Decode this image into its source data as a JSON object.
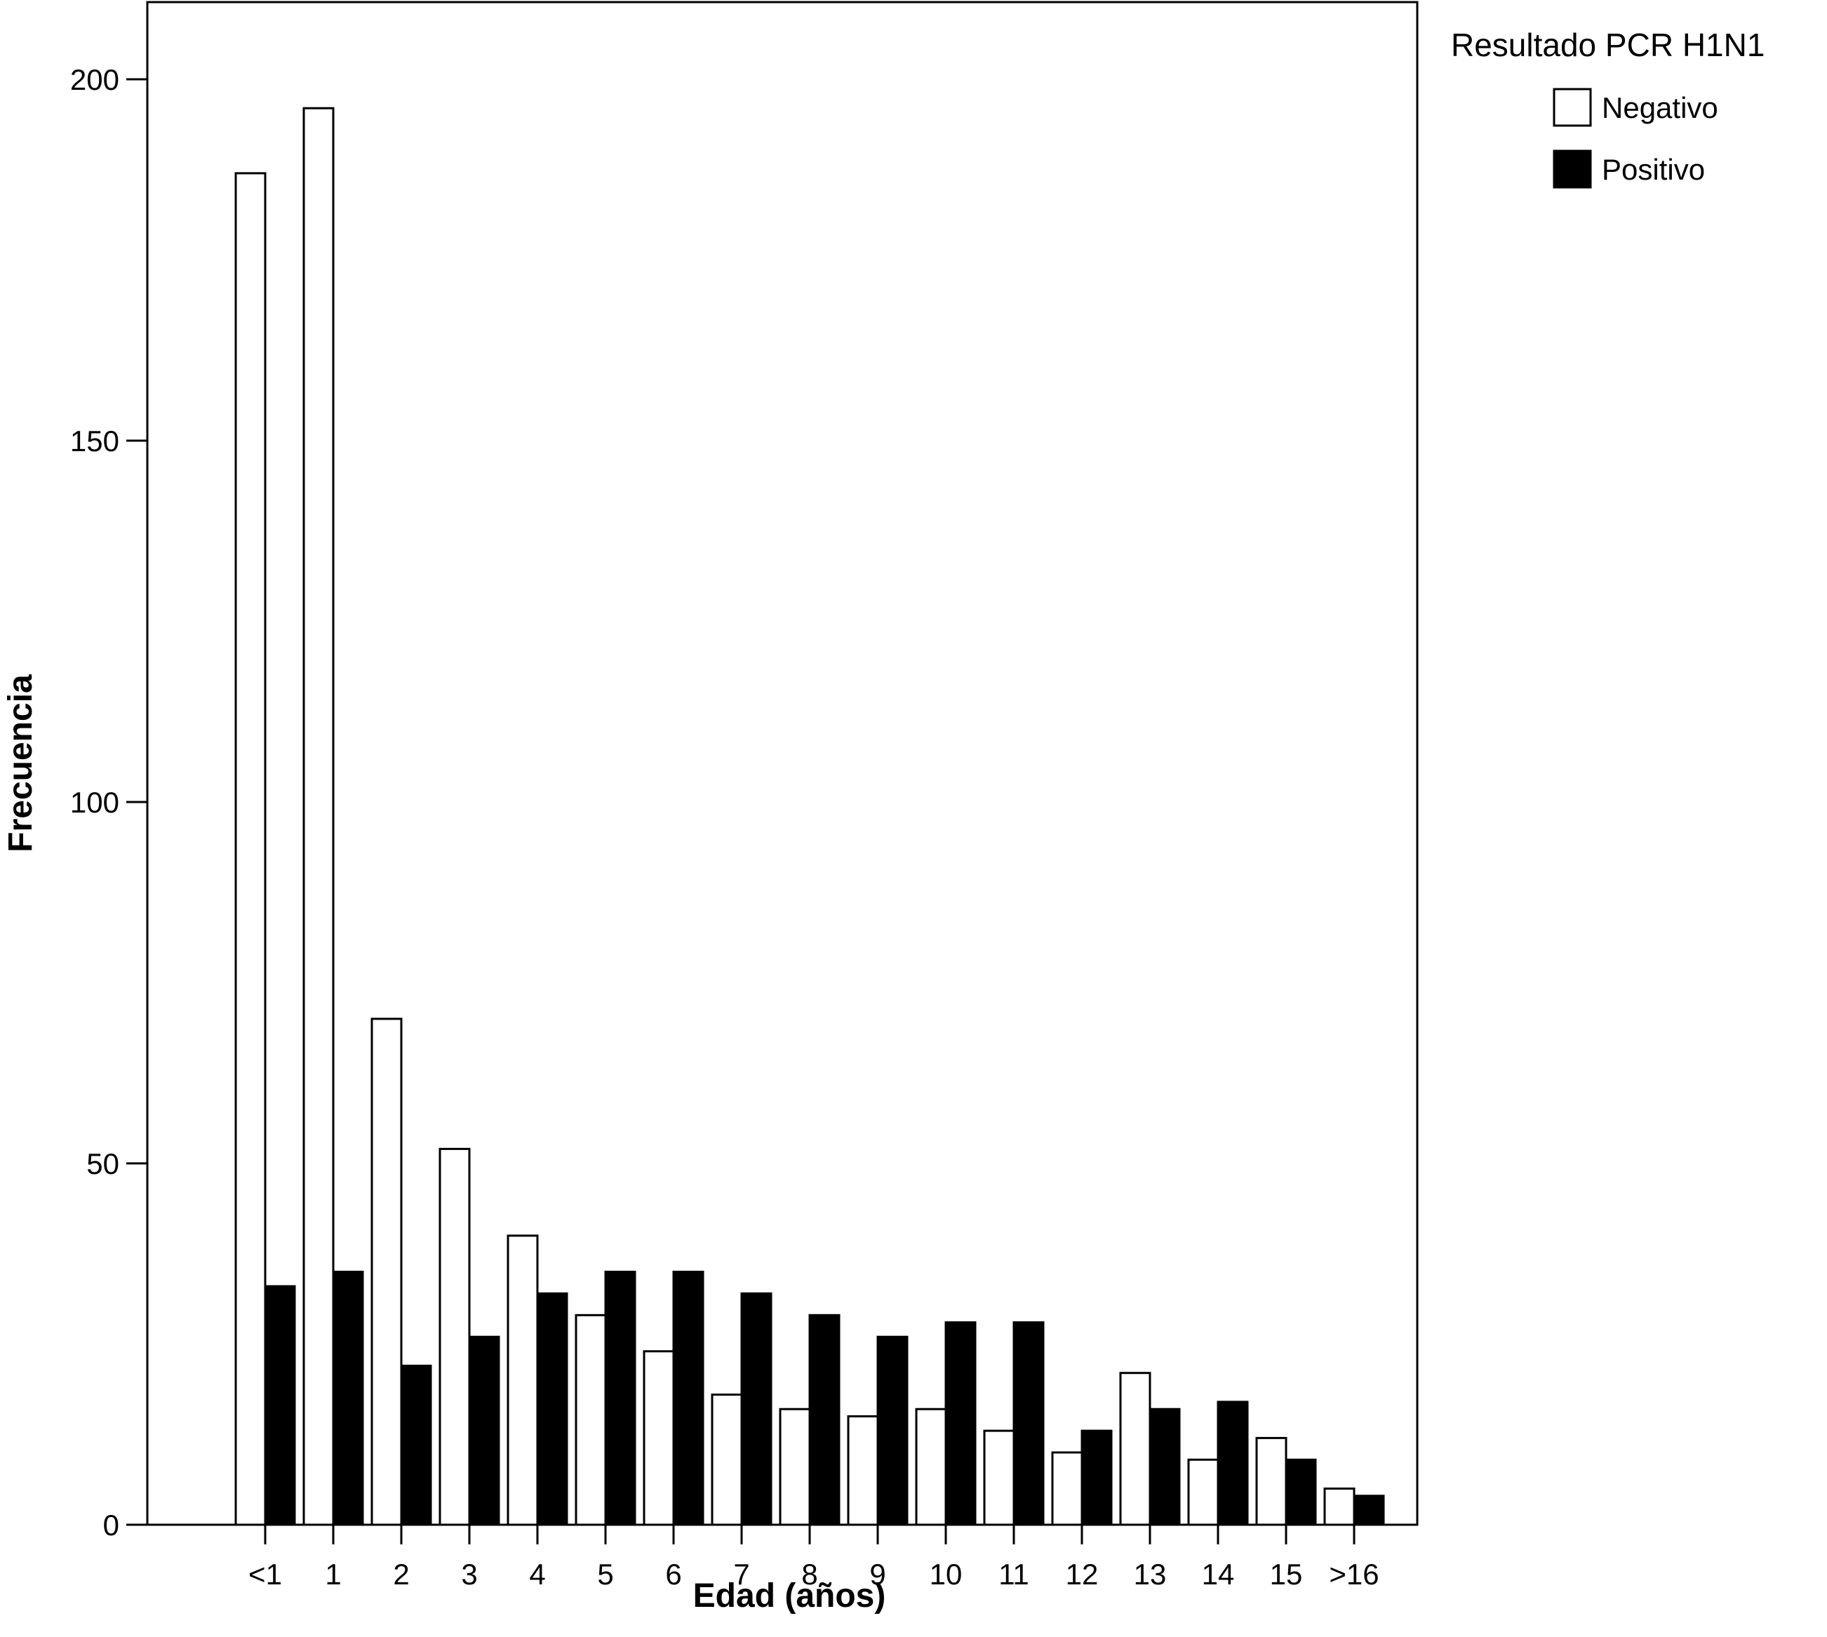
{
  "chart_data": {
    "type": "bar",
    "xlabel": "Edad (años)",
    "ylabel": "Frecuencia",
    "ylim": [
      0,
      210
    ],
    "yticks": [
      0,
      50,
      100,
      150,
      200
    ],
    "categories": [
      "<1",
      "1",
      "2",
      "3",
      "4",
      "5",
      "6",
      "7",
      "8",
      "9",
      "10",
      "11",
      "12",
      "13",
      "14",
      "15",
      ">16"
    ],
    "legend": {
      "title": "Resultado PCR H1N1",
      "placement": "right"
    },
    "series": [
      {
        "name": "Negativo",
        "color": "#ffffff",
        "values": [
          187,
          196,
          70,
          52,
          40,
          29,
          24,
          18,
          16,
          15,
          16,
          13,
          10,
          21,
          9,
          12,
          5
        ]
      },
      {
        "name": "Positivo",
        "color": "#000000",
        "values": [
          33,
          35,
          22,
          26,
          32,
          35,
          35,
          32,
          29,
          26,
          28,
          28,
          13,
          16,
          17,
          9,
          4
        ]
      }
    ]
  }
}
